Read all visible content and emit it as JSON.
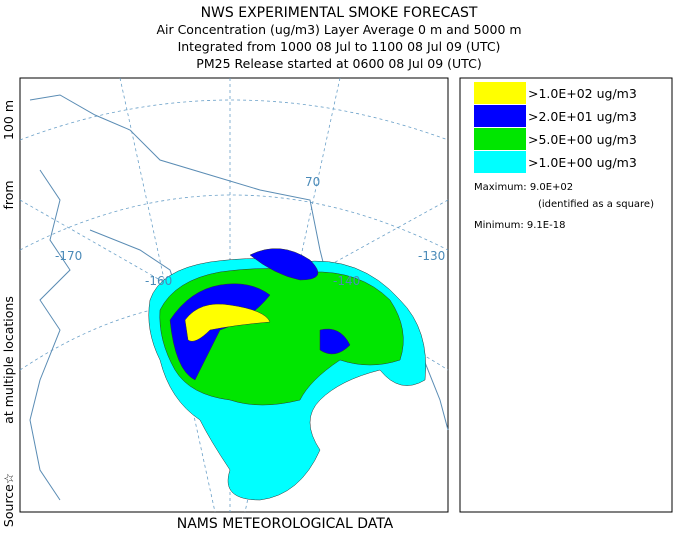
{
  "header": {
    "title": "NWS EXPERIMENTAL SMOKE FORECAST",
    "lines": [
      "Air Concentration (ug/m3) Layer Average    0 m and  5000 m",
      "Integrated from 1000 08 Jul to 1100 08 Jul 09 (UTC)",
      "PM25 Release started at 0600 08 Jul 09 (UTC)"
    ]
  },
  "side_label": [
    "Source☆",
    "at multiple locations",
    "from",
    "100 m"
  ],
  "legend": {
    "items": [
      {
        "label": ">1.0E+02 ug/m3",
        "color": "#ffff00"
      },
      {
        "label": ">2.0E+01 ug/m3",
        "color": "#0000ff"
      },
      {
        "label": ">5.0E+00 ug/m3",
        "color": "#00e600"
      },
      {
        "label": ">1.0E+00 ug/m3",
        "color": "#00ffff"
      }
    ]
  },
  "stats": {
    "maximum": "Maximum: 9.0E+02",
    "max_note": "(identified as a square)",
    "minimum": "Minimum: 9.1E-18"
  },
  "map": {
    "labels": [
      "-170",
      "-160",
      "-140",
      "-130",
      "70"
    ]
  },
  "footer": "NAMS METEOROLOGICAL DATA"
}
